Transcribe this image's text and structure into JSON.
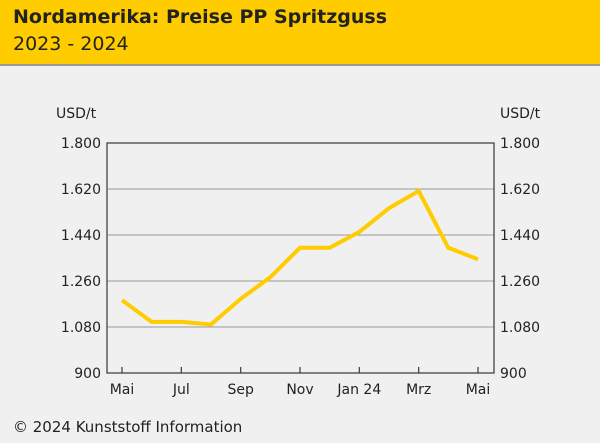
{
  "header": {
    "title": "Nordamerika: Preise PP Spritzguss",
    "subtitle": "2023 - 2024"
  },
  "footer": {
    "copyright": "© 2024 Kunststoff Information"
  },
  "colors": {
    "line": "#ffcc00",
    "header": "#ffcc00"
  },
  "chart_data": {
    "type": "line",
    "title": "Nordamerika: Preise PP Spritzguss",
    "ylabel": "USD/t",
    "ylim": [
      900,
      1800
    ],
    "yticks": [
      "900",
      "1.080",
      "1.260",
      "1.440",
      "1.620",
      "1.800"
    ],
    "ytick_values": [
      900,
      1080,
      1260,
      1440,
      1620,
      1800
    ],
    "xtick_labels": [
      "Mai",
      "Jul",
      "Sep",
      "Nov",
      "Jan 24",
      "Mrz",
      "Mai"
    ],
    "xtick_index": [
      0,
      2,
      4,
      6,
      8,
      10,
      12
    ],
    "x": [
      "2023-05",
      "2023-06",
      "2023-07",
      "2023-08",
      "2023-09",
      "2023-10",
      "2023-11",
      "2023-12",
      "2024-01",
      "2024-02",
      "2024-03",
      "2024-04",
      "2024-05"
    ],
    "series": [
      {
        "name": "PP Spritzguss",
        "values": [
          1185,
          1100,
          1100,
          1090,
          1190,
          1275,
          1390,
          1390,
          1452,
          1545,
          1612,
          1390,
          1345
        ]
      }
    ],
    "grid": true
  }
}
